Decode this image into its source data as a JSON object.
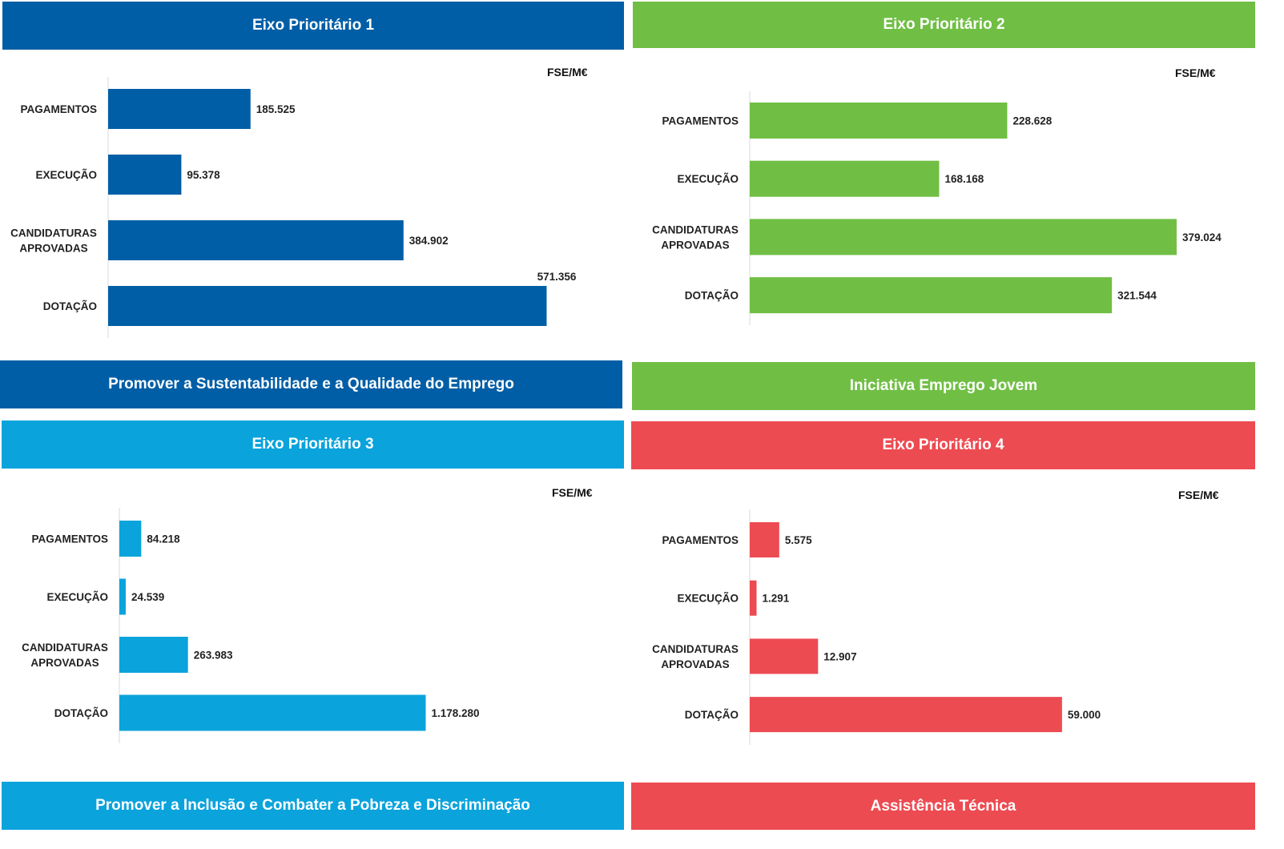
{
  "panels": [
    {
      "title": "Eixo Prioritário  1",
      "subtitle": "Promover a Sustentabilidade  e a Qualidade  do Emprego",
      "unit": "FSE/M€",
      "color": "#005ea6"
    },
    {
      "title": "Eixo Prioritário  2",
      "subtitle": "Iniciativa Emprego Jovem",
      "unit": "FSE/M€",
      "color": "#70bf44"
    },
    {
      "title": "Eixo Prioritário  3",
      "subtitle": "Promover a Inclusão  e Combater  a Pobreza  e Discriminação",
      "unit": "FSE/M€",
      "color": "#0aa3dc"
    },
    {
      "title": "Eixo Prioritário  4",
      "subtitle": "Assistência  Técnica",
      "unit": "FSE/M€",
      "color": "#ed4b52"
    }
  ],
  "chart_data": [
    {
      "type": "bar",
      "orientation": "horizontal",
      "categories": [
        [
          "PAGAMENTOS"
        ],
        [
          "EXECUÇÃO"
        ],
        [
          "CANDIDATURAS",
          "APROVADAS"
        ],
        [
          "DOTAÇÃO"
        ]
      ],
      "values": [
        185.525,
        95.378,
        384.902,
        571.356
      ],
      "labels": [
        "185.525",
        "95.378",
        "384.902",
        "571.356"
      ],
      "label_above_last": true,
      "xlim": [
        0,
        621
      ]
    },
    {
      "type": "bar",
      "orientation": "horizontal",
      "categories": [
        [
          "PAGAMENTOS"
        ],
        [
          "EXECUÇÃO"
        ],
        [
          "CANDIDATURAS",
          "APROVADAS"
        ],
        [
          "DOTAÇÃO"
        ]
      ],
      "values": [
        228.628,
        168.168,
        379.024,
        321.544
      ],
      "labels": [
        "228.628",
        "168.168",
        "379.024",
        "321.544"
      ],
      "xlim": [
        0,
        405
      ]
    },
    {
      "type": "bar",
      "orientation": "horizontal",
      "categories": [
        [
          "PAGAMENTOS"
        ],
        [
          "EXECUÇÃO"
        ],
        [
          "CANDIDATURAS",
          "APROVADAS"
        ],
        [
          "DOTAÇÃO"
        ]
      ],
      "values": [
        84.218,
        24.539,
        263.983,
        1178.28
      ],
      "labels": [
        "84.218",
        "24.539",
        "263.983",
        "1.178.280"
      ],
      "xlim": [
        0,
        1508
      ]
    },
    {
      "type": "bar",
      "orientation": "horizontal",
      "categories": [
        [
          "PAGAMENTOS"
        ],
        [
          "EXECUÇÃO"
        ],
        [
          "CANDIDATURAS",
          "APROVADAS"
        ],
        [
          "DOTAÇÃO"
        ]
      ],
      "values": [
        5.575,
        1.291,
        12.907,
        59.0
      ],
      "labels": [
        "5.575",
        "1.291",
        "12.907",
        "59.000"
      ],
      "xlim": [
        0,
        74.3
      ]
    }
  ]
}
